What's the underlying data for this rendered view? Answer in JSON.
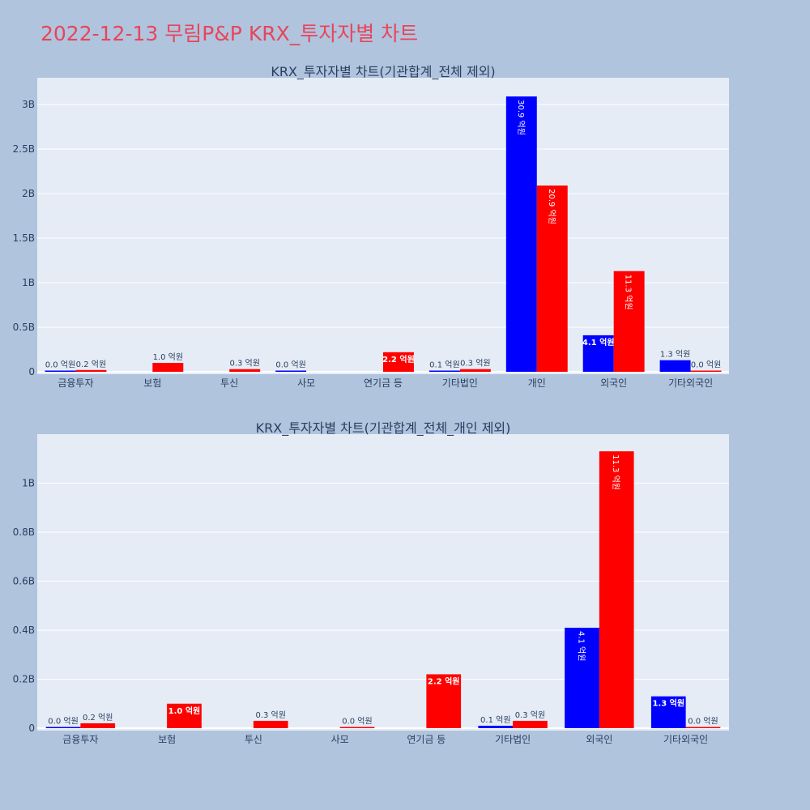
{
  "page": {
    "title": "2022-12-13 무림P&P KRX_투자자별 차트"
  },
  "colors": {
    "background": "#b0c4de",
    "plot_bg": "#e5ecf6",
    "series_a": "#0000ff",
    "series_b": "#ff0000",
    "title": "#e8455a"
  },
  "chart_data": [
    {
      "type": "bar",
      "title": "KRX_투자자별 차트(기관합계_전체 제외)",
      "categories": [
        "금융투자",
        "보험",
        "투신",
        "사모",
        "연기금 등",
        "기타법인",
        "개인",
        "외국인",
        "기타외국인"
      ],
      "ylim": [
        0,
        3.3
      ],
      "yticks": [
        0,
        0.5,
        1,
        1.5,
        2,
        2.5,
        3
      ],
      "ytick_labels": [
        "0",
        "0.5B",
        "1B",
        "1.5B",
        "2B",
        "2.5B",
        "3B"
      ],
      "series": [
        {
          "color": "#0000ff",
          "values": [
            0.0,
            null,
            null,
            0.0,
            null,
            0.01,
            3.09,
            0.41,
            0.13
          ],
          "labels": [
            "0.0 억원",
            "",
            "",
            "0.0 억원",
            "",
            "0.1 억원",
            "30.9 억원",
            "4.1 억원",
            "1.3 억원"
          ]
        },
        {
          "color": "#ff0000",
          "values": [
            0.02,
            0.1,
            0.03,
            null,
            0.22,
            0.03,
            2.09,
            1.13,
            0.0
          ],
          "labels": [
            "0.2 억원",
            "1.0 억원",
            "0.3 억원",
            "",
            "2.2 억원",
            "0.3 억원",
            "20.9 억원",
            "11.3 억원",
            "0.0 억원"
          ]
        }
      ],
      "grid": true
    },
    {
      "type": "bar",
      "title": "KRX_투자자별 차트(기관합계_전체_개인 제외)",
      "categories": [
        "금융투자",
        "보험",
        "투신",
        "사모",
        "연기금 등",
        "기타법인",
        "외국인",
        "기타외국인"
      ],
      "ylim": [
        0,
        1.2
      ],
      "yticks": [
        0,
        0.2,
        0.4,
        0.6,
        0.8,
        1.0
      ],
      "ytick_labels": [
        "0",
        "0.2B",
        "0.4B",
        "0.6B",
        "0.8B",
        "1B"
      ],
      "series": [
        {
          "color": "#0000ff",
          "values": [
            0.0,
            null,
            null,
            null,
            null,
            0.01,
            0.41,
            0.13
          ],
          "labels": [
            "0.0 억원",
            "",
            "",
            "",
            "",
            "0.1 억원",
            "4.1 억원",
            "1.3 억원"
          ]
        },
        {
          "color": "#ff0000",
          "values": [
            0.02,
            0.1,
            0.03,
            0.0,
            0.22,
            0.03,
            1.13,
            0.0
          ],
          "labels": [
            "0.2 억원",
            "1.0 억원",
            "0.3 억원",
            "0.0 억원",
            "2.2 억원",
            "0.3 억원",
            "11.3 억원",
            "0.0 억원"
          ]
        }
      ],
      "grid": true
    }
  ]
}
